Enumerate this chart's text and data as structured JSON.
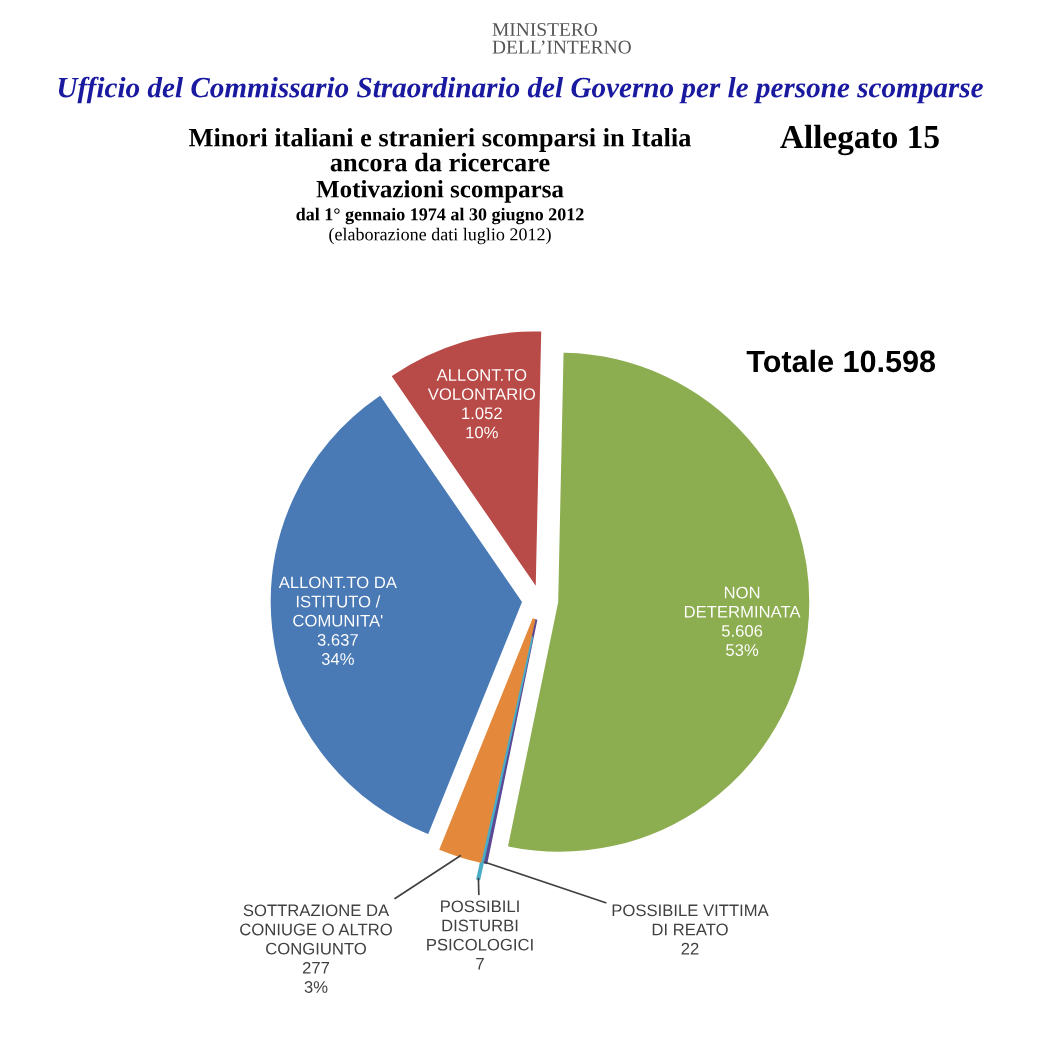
{
  "chart_data": {
    "type": "pie",
    "title": "Minori italiani e stranieri scomparsi in Italia\nancora da ricercare",
    "subtitle": "Motivazioni scomparsa",
    "annotations": [
      "MINISTERO\nDELL’INTERNO",
      "Ufficio del Commissario Straordinario del Governo per le persone scomparse",
      "dal 1° gennaio 1974 al 30 giugno 2012",
      "(elaborazione dati luglio 2012)",
      "Allegato 15",
      "Totale 10.598"
    ],
    "categories": [
      "ALLONT.TO DA\nISTITUTO /\nCOMUNITA'",
      "ALLONT.TO\nVOLONTARIO",
      "NON\nDETERMINATA",
      "POSSIBILE VITTIMA\nDI REATO",
      "POSSIBILI\nDISTURBI\nPSICOLOGICI",
      "SOTTRAZIONE DA\nCONIUGE O ALTRO\nCONGIUNTO"
    ],
    "values": [
      3637,
      1052,
      5606,
      22,
      7,
      277
    ],
    "colors": [
      "#4a7ab5",
      "#b84b48",
      "#8cad50",
      "#5b4a93",
      "#4bacc6",
      "#e4893b"
    ],
    "value_labels": [
      "3.637\n34%",
      "1.052\n10%",
      "5.606\n53%",
      "22",
      "7",
      "277\n3%"
    ]
  }
}
